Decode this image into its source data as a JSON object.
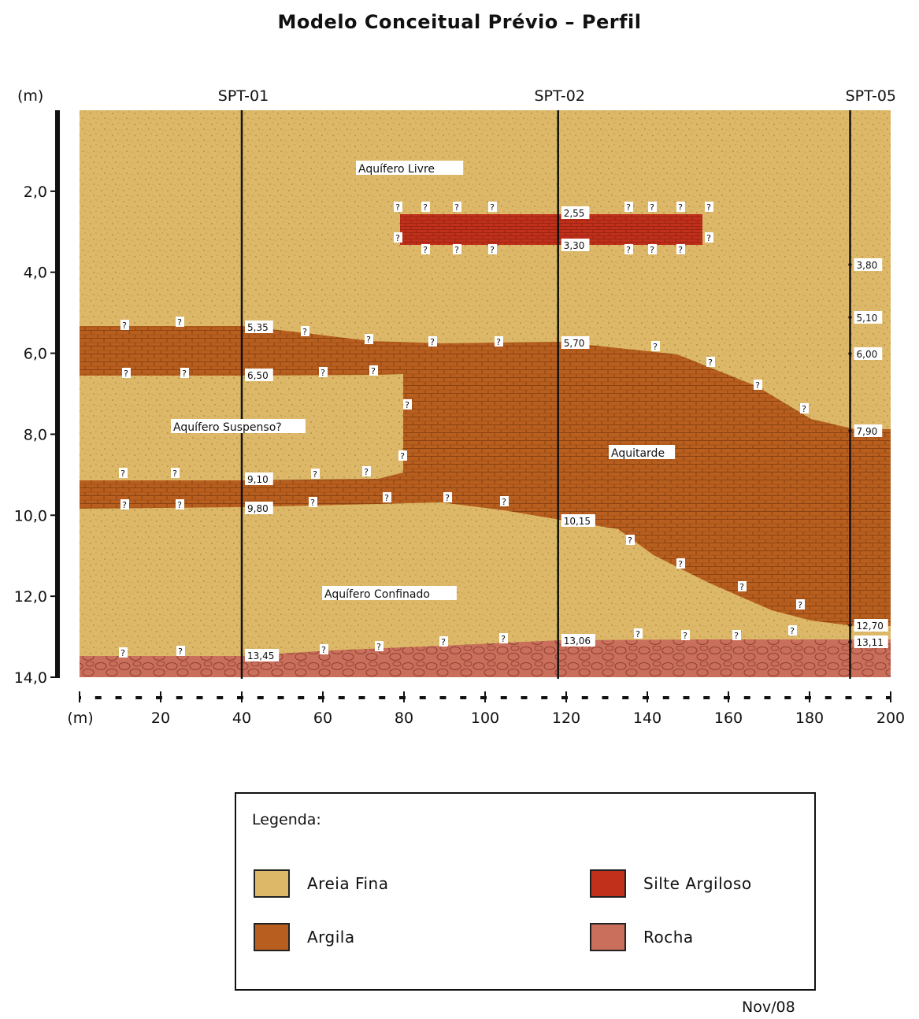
{
  "title": "Modelo Conceitual Prévio – Perfil",
  "axes": {
    "y_unit": "(m)",
    "y_ticks": [
      "2,0",
      "4,0",
      "6,0",
      "8,0",
      "10,0",
      "12,0",
      "14,0"
    ],
    "x_unit": "(m)",
    "x_ticks": [
      "20",
      "40",
      "60",
      "80",
      "100",
      "120",
      "140",
      "160",
      "180",
      "200"
    ]
  },
  "boreholes": [
    {
      "name": "SPT-01",
      "x": 40
    },
    {
      "name": "SPT-02",
      "x": 118
    },
    {
      "name": "SPT-05",
      "x": 190
    }
  ],
  "zones": {
    "aquifero_livre": "Aquífero  Livre",
    "aquifero_suspenso": "Aquífero  Suspenso?",
    "aquitarde": "Aquitarde",
    "aquifero_confinado": "Aquífero  Confinado"
  },
  "depth_labels": {
    "spt01": [
      "5,35",
      "6,50",
      "9,10",
      "9,80",
      "13,45"
    ],
    "spt02": [
      "2,55",
      "3,30",
      "5,70",
      "10,15",
      "13,06"
    ],
    "spt05": [
      "3,80",
      "5,10",
      "6,00",
      "7,90",
      "12,70",
      "13,11"
    ]
  },
  "uncertainty_mark": "?",
  "colors": {
    "areia_fina": "#dcb868",
    "argila": "#b85f1f",
    "silte_argiloso": "#c0301b",
    "rocha": "#c96f5c"
  },
  "legend": {
    "title": "Legenda:",
    "items": [
      {
        "label": "Areia  Fina",
        "swatch": "areia_fina"
      },
      {
        "label": "Silte  Argiloso",
        "swatch": "silte_argiloso"
      },
      {
        "label": "Argila",
        "swatch": "argila"
      },
      {
        "label": "Rocha",
        "swatch": "rocha"
      }
    ]
  },
  "date": "Nov/08"
}
